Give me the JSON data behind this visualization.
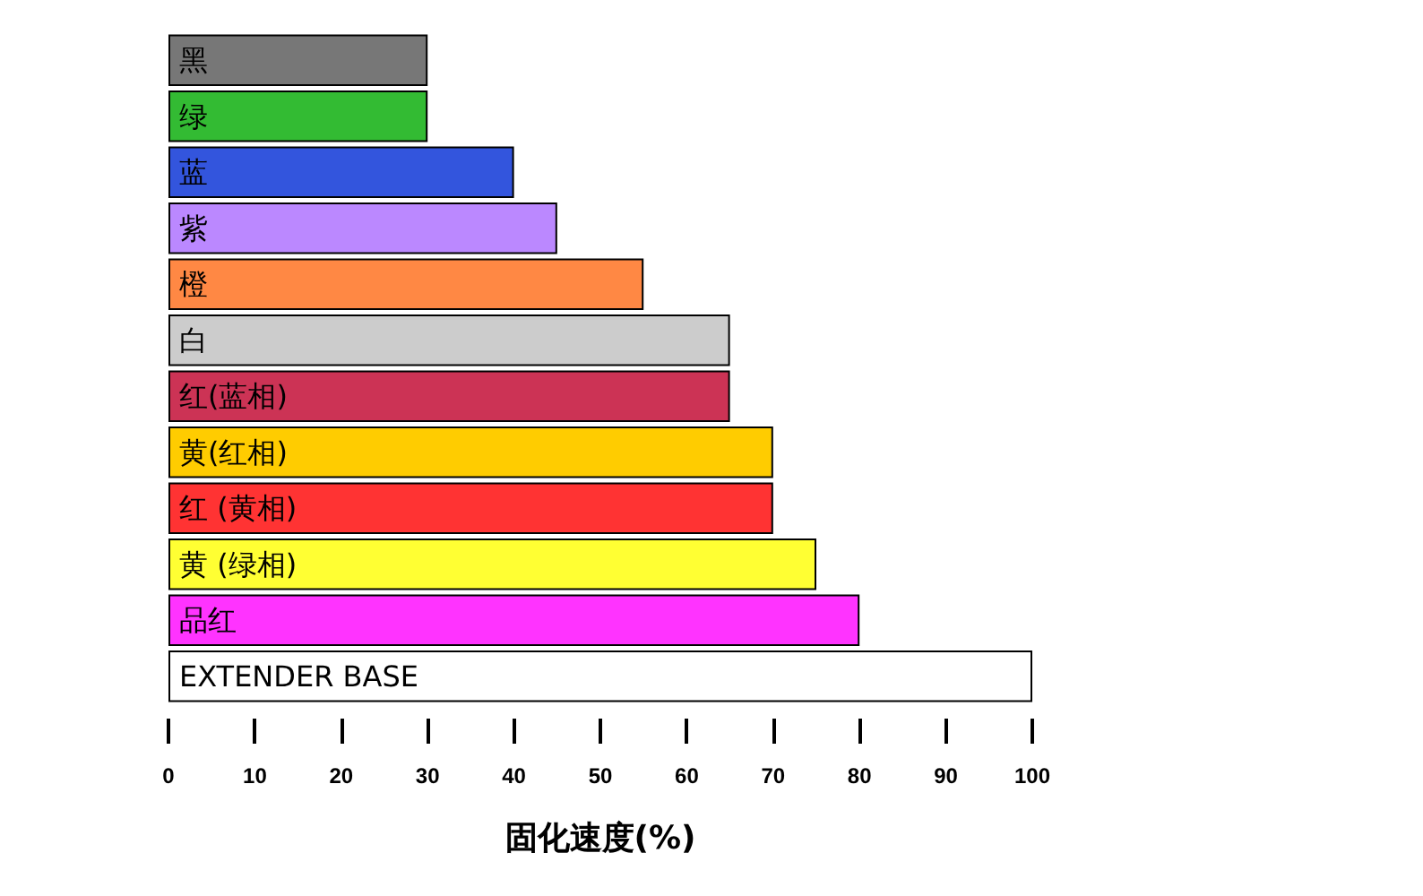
{
  "chart_data": {
    "type": "bar",
    "orientation": "horizontal",
    "xlabel": "固化速度(%)",
    "categories": [
      "黑",
      "绿",
      "蓝",
      "紫",
      "橙",
      "白",
      "红(蓝相)",
      "黄(红相)",
      "红 (黄相)",
      "黄 (绿相)",
      "品红",
      "EXTENDER BASE"
    ],
    "values": [
      30,
      30,
      40,
      45,
      55,
      65,
      65,
      70,
      70,
      75,
      80,
      100
    ],
    "colors": [
      "#777777",
      "#33bb33",
      "#3355dd",
      "#bb88ff",
      "#ff8844",
      "#cccccc",
      "#cc3355",
      "#ffcc00",
      "#ff3333",
      "#ffff33",
      "#ff33ff",
      "#ffffff"
    ],
    "xlim": [
      0,
      100
    ],
    "xticks": [
      0,
      10,
      20,
      30,
      40,
      50,
      60,
      70,
      80,
      90,
      100
    ],
    "grid": false
  }
}
